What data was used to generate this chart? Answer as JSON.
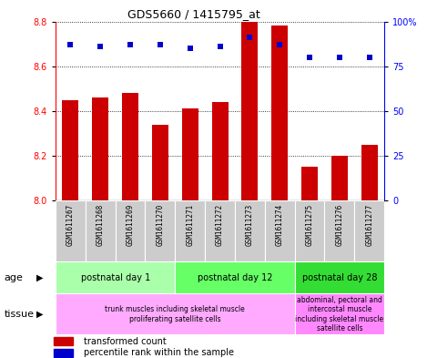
{
  "title": "GDS5660 / 1415795_at",
  "samples": [
    "GSM1611267",
    "GSM1611268",
    "GSM1611269",
    "GSM1611270",
    "GSM1611271",
    "GSM1611272",
    "GSM1611273",
    "GSM1611274",
    "GSM1611275",
    "GSM1611276",
    "GSM1611277"
  ],
  "transformed_count": [
    8.45,
    8.46,
    8.48,
    8.34,
    8.41,
    8.44,
    8.8,
    8.78,
    8.15,
    8.2,
    8.25
  ],
  "percentile_rank": [
    87,
    86,
    87,
    87,
    85,
    86,
    91,
    87,
    80,
    80,
    80
  ],
  "ylim_left": [
    8.0,
    8.8
  ],
  "ylim_right": [
    0,
    100
  ],
  "yticks_left": [
    8.0,
    8.2,
    8.4,
    8.6,
    8.8
  ],
  "yticks_right": [
    0,
    25,
    50,
    75,
    100
  ],
  "ytick_labels_right": [
    "0",
    "25",
    "50",
    "75",
    "100%"
  ],
  "bar_color": "#cc0000",
  "dot_color": "#0000cc",
  "age_groups": [
    {
      "label": "postnatal day 1",
      "start": 0,
      "end": 3,
      "color": "#aaffaa"
    },
    {
      "label": "postnatal day 12",
      "start": 4,
      "end": 7,
      "color": "#66ff66"
    },
    {
      "label": "postnatal day 28",
      "start": 8,
      "end": 10,
      "color": "#33dd33"
    }
  ],
  "tissue_groups": [
    {
      "label": "trunk muscles including skeletal muscle\nproliferating satellite cells",
      "start": 0,
      "end": 7,
      "color": "#ffaaff"
    },
    {
      "label": "abdominal, pectoral and\nintercostal muscle\nincluding skeletal muscle\nsatellite cells",
      "start": 8,
      "end": 10,
      "color": "#ff88ff"
    }
  ],
  "bar_bottom": 8.0,
  "bar_width": 0.55,
  "sample_box_color": "#cccccc",
  "fig_bg": "#ffffff"
}
